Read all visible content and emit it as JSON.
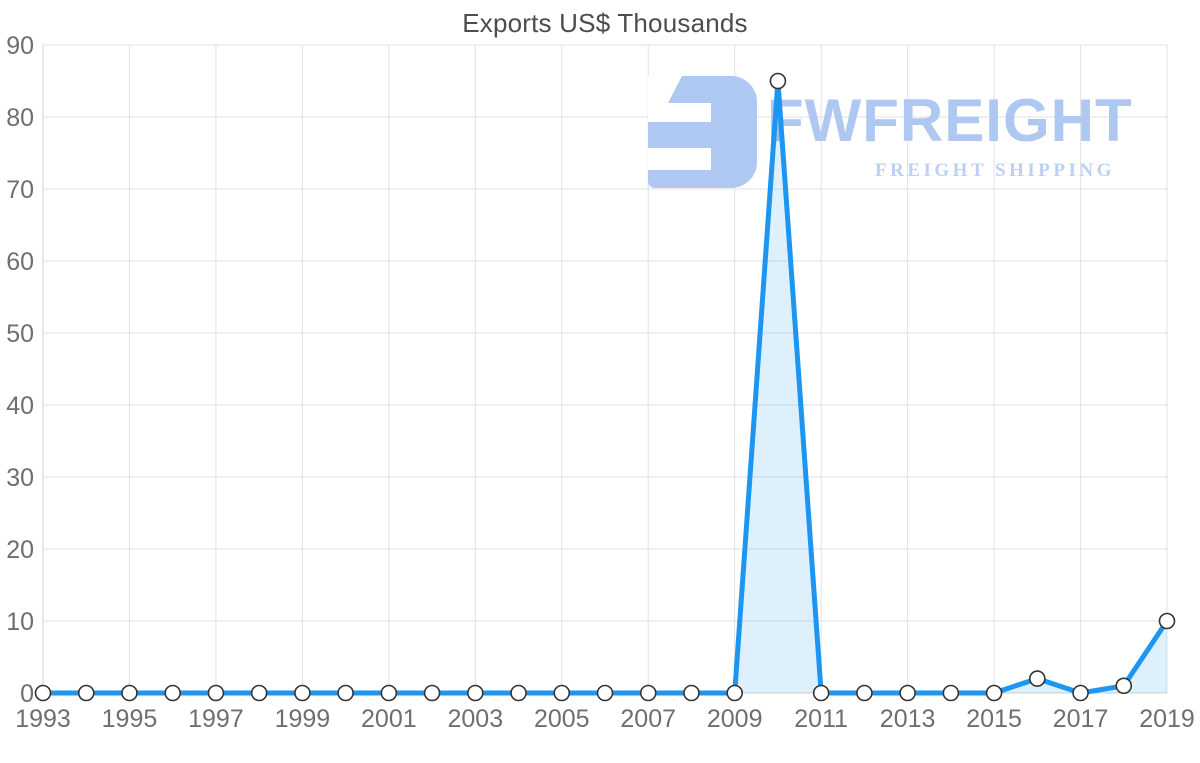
{
  "chart_data": {
    "type": "area",
    "title": "Exports US$ Thousands",
    "series_name": "Exports",
    "x": [
      1993,
      1994,
      1995,
      1996,
      1997,
      1998,
      1999,
      2000,
      2001,
      2002,
      2003,
      2004,
      2005,
      2006,
      2007,
      2008,
      2009,
      2010,
      2011,
      2012,
      2013,
      2014,
      2015,
      2016,
      2017,
      2018,
      2019
    ],
    "values": [
      0,
      0,
      0,
      0,
      0,
      0,
      0,
      0,
      0,
      0,
      0,
      0,
      0,
      0,
      0,
      0,
      0,
      85,
      0,
      0,
      0,
      0,
      0,
      2,
      0,
      1,
      10
    ],
    "xlabel": "",
    "ylabel": "",
    "xlim": [
      1993,
      2019
    ],
    "ylim": [
      0,
      90
    ],
    "y_ticks": [
      0,
      10,
      20,
      30,
      40,
      50,
      60,
      70,
      80,
      90
    ],
    "x_tick_labels": [
      "1993",
      "1995",
      "1997",
      "1999",
      "2001",
      "2003",
      "2005",
      "2007",
      "2009",
      "2011",
      "2013",
      "2015",
      "2017",
      "2019"
    ],
    "grid": true,
    "legend": false,
    "marker": "circle"
  },
  "watermark": {
    "brand": "FWFREIGHT",
    "tagline": "FREIGHT SHIPPING",
    "logo_icon": "fwfreight-logo"
  },
  "colors": {
    "background": "#ffffff",
    "line": "#1d96f2",
    "area_fill": "#1d96f2",
    "area_fill_opacity": "0.14",
    "marker_fill": "#ffffff",
    "marker_stroke": "#333333",
    "grid": "#e1e1e1",
    "axis_line": "#d2d2d2",
    "tick_label": "#6f6f6f",
    "title": "#4d4d4d",
    "watermark": "#afc8f1",
    "watermark_tagline": "#bcd0f4"
  }
}
